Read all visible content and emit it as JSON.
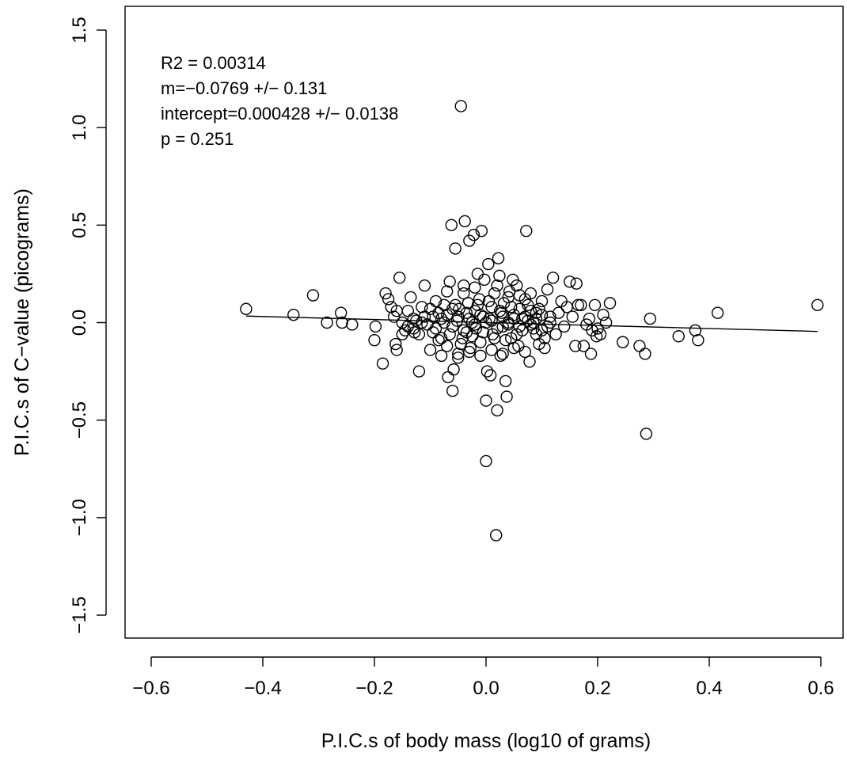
{
  "chart_data": {
    "type": "scatter",
    "title": "",
    "xlabel": "P.I.C.s of body mass (log10 of grams)",
    "ylabel": "P.I.C.s of C−value (picograms)",
    "xlim": [
      -0.66,
      0.66
    ],
    "ylim": [
      -1.62,
      1.62
    ],
    "x_ticks": [
      -0.6,
      -0.4,
      -0.2,
      0.0,
      0.2,
      0.4,
      0.6
    ],
    "x_tick_labels": [
      "−0.6",
      "−0.4",
      "−0.2",
      "0.0",
      "0.2",
      "0.4",
      "0.6"
    ],
    "y_ticks": [
      -1.5,
      -1.0,
      -0.5,
      0.0,
      0.5,
      1.0,
      1.5
    ],
    "y_tick_labels": [
      "−1.5",
      "−1.0",
      "−0.5",
      "0.0",
      "0.5",
      "1.0",
      "1.5"
    ],
    "grid": false,
    "annotations": [
      "R2 = 0.00314",
      "m=−0.0769 +/− 0.131",
      "intercept=0.000428 +/− 0.0138",
      "p = 0.251"
    ],
    "fit_line": {
      "slope": -0.0769,
      "intercept": 0.000428,
      "x_range": [
        -0.43,
        0.594
      ]
    },
    "points": [
      [
        -0.43,
        0.07
      ],
      [
        -0.345,
        0.04
      ],
      [
        -0.31,
        0.14
      ],
      [
        -0.285,
        0.0
      ],
      [
        -0.26,
        0.05
      ],
      [
        -0.258,
        0.0
      ],
      [
        -0.24,
        -0.01
      ],
      [
        -0.2,
        -0.09
      ],
      [
        -0.198,
        -0.02
      ],
      [
        -0.185,
        -0.21
      ],
      [
        -0.18,
        0.15
      ],
      [
        -0.175,
        0.12
      ],
      [
        -0.17,
        0.08
      ],
      [
        -0.165,
        0.03
      ],
      [
        -0.162,
        -0.11
      ],
      [
        -0.16,
        -0.14
      ],
      [
        -0.155,
        0.23
      ],
      [
        -0.15,
        0.0
      ],
      [
        -0.145,
        -0.04
      ],
      [
        -0.14,
        0.06
      ],
      [
        -0.135,
        0.13
      ],
      [
        -0.13,
        0.02
      ],
      [
        -0.128,
        -0.05
      ],
      [
        -0.12,
        -0.25
      ],
      [
        -0.115,
        0.08
      ],
      [
        -0.11,
        0.19
      ],
      [
        -0.105,
        -0.01
      ],
      [
        -0.1,
        -0.14
      ],
      [
        -0.095,
        0.03
      ],
      [
        -0.09,
        0.11
      ],
      [
        -0.085,
        0.05
      ],
      [
        -0.08,
        -0.08
      ],
      [
        -0.075,
        0.09
      ],
      [
        -0.07,
        -0.12
      ],
      [
        -0.068,
        -0.28
      ],
      [
        -0.065,
        0.21
      ],
      [
        -0.062,
        0.5
      ],
      [
        -0.06,
        -0.35
      ],
      [
        -0.058,
        -0.24
      ],
      [
        -0.055,
        0.38
      ],
      [
        -0.052,
        0.01
      ],
      [
        -0.05,
        -0.16
      ],
      [
        -0.048,
        0.07
      ],
      [
        -0.045,
        1.11
      ],
      [
        -0.042,
        -0.08
      ],
      [
        -0.04,
        0.15
      ],
      [
        -0.038,
        0.52
      ],
      [
        -0.035,
        -0.05
      ],
      [
        -0.032,
        0.1
      ],
      [
        -0.03,
        0.42
      ],
      [
        -0.028,
        -0.13
      ],
      [
        -0.025,
        0.0
      ],
      [
        -0.022,
        0.45
      ],
      [
        -0.02,
        0.06
      ],
      [
        -0.018,
        -0.03
      ],
      [
        -0.015,
        0.25
      ],
      [
        -0.012,
        0.12
      ],
      [
        -0.01,
        -0.1
      ],
      [
        -0.008,
        0.47
      ],
      [
        -0.005,
        0.03
      ],
      [
        -0.003,
        0.22
      ],
      [
        0.0,
        -0.4
      ],
      [
        0.0,
        -0.71
      ],
      [
        0.002,
        -0.25
      ],
      [
        0.004,
        0.3
      ],
      [
        0.006,
        0.02
      ],
      [
        0.008,
        -0.27
      ],
      [
        0.01,
        0.08
      ],
      [
        0.012,
        -0.06
      ],
      [
        0.015,
        0.15
      ],
      [
        0.018,
        -1.09
      ],
      [
        0.02,
        -0.45
      ],
      [
        0.022,
        0.33
      ],
      [
        0.024,
        0.24
      ],
      [
        0.026,
        -0.17
      ],
      [
        0.028,
        0.05
      ],
      [
        0.03,
        -0.02
      ],
      [
        0.032,
        0.1
      ],
      [
        0.035,
        -0.3
      ],
      [
        0.037,
        -0.38
      ],
      [
        0.04,
        0.0
      ],
      [
        0.042,
        0.16
      ],
      [
        0.045,
        -0.08
      ],
      [
        0.048,
        0.22
      ],
      [
        0.05,
        0.04
      ],
      [
        0.055,
        0.19
      ],
      [
        0.058,
        -0.12
      ],
      [
        0.06,
        0.07
      ],
      [
        0.065,
        -0.04
      ],
      [
        0.07,
        0.12
      ],
      [
        0.072,
        0.47
      ],
      [
        0.075,
        0.01
      ],
      [
        0.078,
        -0.2
      ],
      [
        0.08,
        0.06
      ],
      [
        0.085,
        -0.03
      ],
      [
        0.09,
        0.02
      ],
      [
        0.095,
        -0.11
      ],
      [
        0.1,
        0.04
      ],
      [
        0.105,
        -0.13
      ],
      [
        0.11,
        0.17
      ],
      [
        0.115,
        0.0
      ],
      [
        0.12,
        0.23
      ],
      [
        0.125,
        -0.06
      ],
      [
        0.13,
        0.05
      ],
      [
        0.135,
        0.11
      ],
      [
        0.14,
        -0.02
      ],
      [
        0.145,
        0.08
      ],
      [
        0.15,
        0.21
      ],
      [
        0.155,
        0.03
      ],
      [
        0.16,
        -0.12
      ],
      [
        0.162,
        0.2
      ],
      [
        0.165,
        0.09
      ],
      [
        0.17,
        0.09
      ],
      [
        0.175,
        -0.12
      ],
      [
        0.18,
        -0.01
      ],
      [
        0.185,
        0.02
      ],
      [
        0.188,
        -0.16
      ],
      [
        0.19,
        -0.04
      ],
      [
        0.195,
        0.09
      ],
      [
        0.198,
        -0.07
      ],
      [
        0.2,
        -0.03
      ],
      [
        0.205,
        -0.06
      ],
      [
        0.21,
        0.04
      ],
      [
        0.215,
        0.0
      ],
      [
        0.222,
        0.1
      ],
      [
        0.245,
        -0.1
      ],
      [
        0.275,
        -0.12
      ],
      [
        0.285,
        -0.16
      ],
      [
        0.287,
        -0.57
      ],
      [
        0.294,
        0.02
      ],
      [
        0.345,
        -0.07
      ],
      [
        0.375,
        -0.04
      ],
      [
        0.38,
        -0.09
      ],
      [
        0.415,
        0.05
      ],
      [
        0.594,
        0.09
      ],
      [
        -0.09,
        -0.03
      ],
      [
        -0.08,
        0.02
      ],
      [
        -0.07,
        0.04
      ],
      [
        -0.06,
        -0.02
      ],
      [
        -0.05,
        0.03
      ],
      [
        -0.04,
        -0.04
      ],
      [
        -0.03,
        0.02
      ],
      [
        -0.02,
        -0.01
      ],
      [
        -0.01,
        0.04
      ],
      [
        0.0,
        0.0
      ],
      [
        0.01,
        0.01
      ],
      [
        0.02,
        -0.03
      ],
      [
        0.03,
        0.03
      ],
      [
        0.04,
        -0.01
      ],
      [
        0.05,
        0.02
      ],
      [
        0.06,
        -0.02
      ],
      [
        0.07,
        0.03
      ],
      [
        0.08,
        -0.01
      ],
      [
        0.09,
        0.05
      ],
      [
        0.1,
        -0.04
      ],
      [
        -0.12,
        -0.06
      ],
      [
        -0.11,
        0.03
      ],
      [
        -0.1,
        0.07
      ],
      [
        -0.095,
        -0.05
      ],
      [
        -0.085,
        -0.09
      ],
      [
        -0.075,
        0.0
      ],
      [
        -0.065,
        -0.06
      ],
      [
        -0.055,
        0.09
      ],
      [
        -0.045,
        -0.11
      ],
      [
        -0.035,
        0.05
      ],
      [
        -0.025,
        -0.07
      ],
      [
        -0.015,
        0.09
      ],
      [
        -0.005,
        -0.05
      ],
      [
        0.005,
        0.11
      ],
      [
        0.015,
        -0.08
      ],
      [
        0.025,
        0.06
      ],
      [
        0.035,
        -0.09
      ],
      [
        0.045,
        0.08
      ],
      [
        0.055,
        -0.06
      ],
      [
        0.065,
        0.02
      ],
      [
        0.075,
        0.09
      ],
      [
        0.085,
        0.0
      ],
      [
        0.095,
        0.07
      ],
      [
        0.105,
        -0.08
      ],
      [
        0.115,
        0.03
      ],
      [
        -0.14,
        -0.02
      ],
      [
        -0.13,
        -0.03
      ],
      [
        -0.125,
        0.01
      ],
      [
        -0.16,
        0.06
      ],
      [
        -0.15,
        -0.06
      ],
      [
        -0.03,
        -0.15
      ],
      [
        -0.02,
        0.18
      ],
      [
        -0.01,
        -0.17
      ],
      [
        0.01,
        -0.14
      ],
      [
        0.02,
        0.19
      ],
      [
        0.03,
        -0.16
      ],
      [
        0.04,
        0.13
      ],
      [
        0.05,
        -0.13
      ],
      [
        0.06,
        0.14
      ],
      [
        -0.04,
        0.19
      ],
      [
        -0.05,
        -0.18
      ],
      [
        -0.06,
        0.07
      ],
      [
        -0.07,
        0.16
      ],
      [
        -0.08,
        -0.17
      ],
      [
        0.07,
        -0.15
      ],
      [
        0.08,
        0.15
      ],
      [
        0.09,
        -0.06
      ],
      [
        0.1,
        0.11
      ],
      [
        0.11,
        -0.02
      ],
      [
        -0.115,
        0.0
      ]
    ]
  }
}
